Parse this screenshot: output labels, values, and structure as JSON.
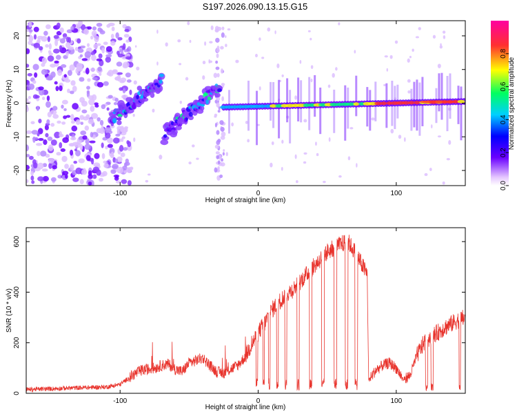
{
  "figure_title": "S197.2026.090.13.15.G15",
  "chart_data": [
    {
      "type": "heatmap",
      "title": "S197.2026.090.13.15.G15",
      "xlabel": "Height of straight line (km)",
      "ylabel": "Frequency (Hz)",
      "xlim": [
        -168,
        150
      ],
      "ylim": [
        -24.5,
        24.5
      ],
      "xticks": [
        -100,
        0,
        100
      ],
      "yticks": [
        -20,
        -10,
        0,
        10,
        20
      ],
      "colorbar": {
        "label": "Normalized spectral amplitude",
        "range": [
          0,
          1
        ],
        "ticks": [
          "0.0",
          "0.2",
          "0.4",
          "0.6",
          "0.8"
        ]
      },
      "features": [
        {
          "name": "noise-region",
          "x_range": [
            -168,
            -100
          ],
          "f_range": [
            -24,
            24
          ]
        },
        {
          "name": "track-1",
          "x": [
            -106,
            -70
          ],
          "f": [
            -5,
            7
          ]
        },
        {
          "name": "track-2",
          "x": [
            -68,
            -28
          ],
          "f": [
            -9,
            5
          ]
        },
        {
          "name": "main-track",
          "x": [
            -25,
            150
          ],
          "f": [
            -1.2,
            0.5
          ]
        }
      ]
    },
    {
      "type": "line",
      "xlabel": "Height of straight line (km)",
      "ylabel": "SNR (10 * v/v)",
      "xlim": [
        -168,
        150
      ],
      "ylim": [
        0,
        655
      ],
      "xticks": [
        -100,
        0,
        100
      ],
      "yticks": [
        0,
        200,
        400,
        600
      ],
      "series": [
        {
          "name": "SNR",
          "color": "#e8332c",
          "x": [
            -168,
            -150,
            -130,
            -110,
            -100,
            -95,
            -90,
            -85,
            -80,
            -75,
            -70,
            -65,
            -60,
            -55,
            -50,
            -45,
            -40,
            -35,
            -30,
            -25,
            -20,
            -15,
            -10,
            -5,
            0,
            5,
            10,
            15,
            20,
            25,
            30,
            35,
            40,
            45,
            50,
            55,
            60,
            65,
            70,
            75,
            79,
            80,
            85,
            90,
            95,
            100,
            105,
            110,
            115,
            120,
            125,
            130,
            135,
            140,
            145,
            150
          ],
          "values": [
            15,
            18,
            22,
            25,
            35,
            55,
            75,
            90,
            95,
            100,
            110,
            115,
            95,
            85,
            120,
            130,
            140,
            110,
            85,
            80,
            95,
            110,
            140,
            190,
            240,
            280,
            330,
            360,
            390,
            410,
            440,
            470,
            500,
            530,
            560,
            575,
            590,
            600,
            560,
            510,
            470,
            50,
            90,
            110,
            120,
            100,
            55,
            70,
            150,
            200,
            225,
            240,
            260,
            275,
            290,
            300
          ]
        }
      ]
    }
  ]
}
